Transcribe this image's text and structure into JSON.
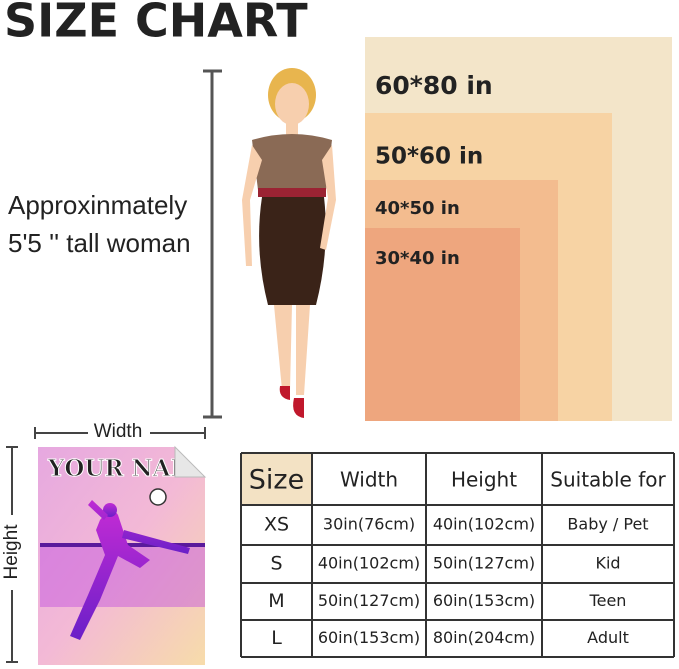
{
  "title": "SIZE CHART",
  "model_note": [
    "Approxinmately",
    "5'5 '' tall woman"
  ],
  "blanket_sizes": [
    "60*80 in",
    "50*60 in",
    "40*50 in",
    "30*40 in"
  ],
  "dimension_labels": {
    "width": "Width",
    "height": "Height"
  },
  "product_print": "YOUR NAME",
  "table": {
    "header": [
      "Size",
      "Width",
      "Height",
      "Suitable for"
    ],
    "rows": [
      [
        "XS",
        "30in(76cm)",
        "40in(102cm)",
        "Baby / Pet"
      ],
      [
        "S",
        "40in(102cm)",
        "50in(127cm)",
        "Kid"
      ],
      [
        "M",
        "50in(127cm)",
        "60in(153cm)",
        "Teen"
      ],
      [
        "L",
        "60in(153cm)",
        "80in(204cm)",
        "Adult"
      ]
    ]
  }
}
